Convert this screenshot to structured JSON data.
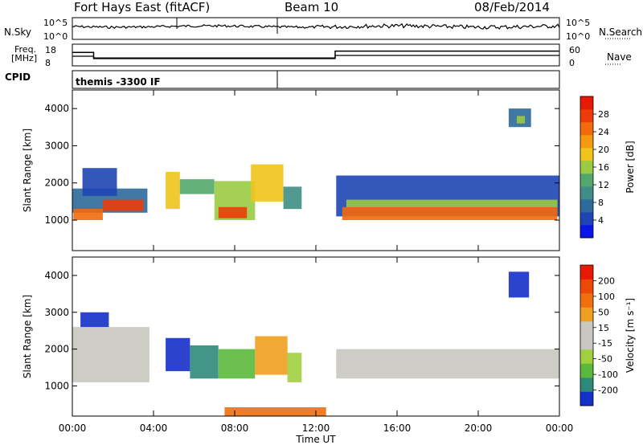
{
  "header": {
    "radar": "Fort Hays East (fitACF)",
    "beam": "Beam 10",
    "date": "08/Feb/2014"
  },
  "strip_nsky": {
    "left_label": "N.Sky",
    "right_label": "N.Search",
    "y_ticks": [
      "10^5",
      "10^0"
    ]
  },
  "strip_freq": {
    "left_label_line1": "Freq.",
    "left_label_line2": "[MHz]",
    "left_ticks": [
      "18",
      "8"
    ],
    "right_label": "Nave",
    "right_ticks": [
      "60",
      "0"
    ],
    "freq_steps": [
      {
        "t0": 0.0,
        "t1": 1.05,
        "freq_mhz": 14.2
      },
      {
        "t0": 1.05,
        "t1": 12.95,
        "freq_mhz": 11.6
      },
      {
        "t0": 12.95,
        "t1": 24.0,
        "freq_mhz": 14.8
      }
    ]
  },
  "cpid": {
    "label": "CPID",
    "program": "themis -3300 IF"
  },
  "chart_data": [
    {
      "type": "heatmap",
      "name": "power",
      "ylabel": "Slant Range [km]",
      "yticks": [
        1000,
        2000,
        3000,
        4000
      ],
      "ylim": [
        180,
        4500
      ],
      "xlim": [
        0,
        24
      ],
      "colorbar": {
        "label": "Power [dB]",
        "ticks": [
          "28",
          "24",
          "20",
          "16",
          "12",
          "8",
          "4"
        ],
        "colors": [
          "#0a15e8",
          "#1e45b4",
          "#2e6a9a",
          "#3f8e86",
          "#52a86a",
          "#9acb42",
          "#f0c41c",
          "#f59a10",
          "#f26a0c",
          "#ee3b08",
          "#e61a04"
        ]
      },
      "patches": [
        {
          "t0": 0.0,
          "t1": 3.7,
          "r0": 1200,
          "r1": 1850,
          "lvl": 2
        },
        {
          "t0": 0.05,
          "t1": 1.5,
          "r0": 1000,
          "r1": 1300,
          "lvl": 8
        },
        {
          "t0": 1.5,
          "t1": 3.5,
          "r0": 1250,
          "r1": 1550,
          "lvl": 9
        },
        {
          "t0": 0.5,
          "t1": 2.2,
          "r0": 1650,
          "r1": 2400,
          "lvl": 1
        },
        {
          "t0": 4.6,
          "t1": 5.3,
          "r0": 1300,
          "r1": 2300,
          "lvl": 6
        },
        {
          "t0": 5.3,
          "t1": 7.0,
          "r0": 1700,
          "r1": 2100,
          "lvl": 4
        },
        {
          "t0": 7.0,
          "t1": 9.0,
          "r0": 1000,
          "r1": 2050,
          "lvl": 5
        },
        {
          "t0": 7.2,
          "t1": 8.6,
          "r0": 1050,
          "r1": 1350,
          "lvl": 9
        },
        {
          "t0": 8.8,
          "t1": 10.4,
          "r0": 1500,
          "r1": 2500,
          "lvl": 6
        },
        {
          "t0": 10.4,
          "t1": 11.3,
          "r0": 1300,
          "r1": 1900,
          "lvl": 3
        },
        {
          "t0": 13.0,
          "t1": 24.0,
          "r0": 1100,
          "r1": 2200,
          "lvl": 1
        },
        {
          "t0": 13.3,
          "t1": 23.9,
          "r0": 1000,
          "r1": 1350,
          "lvl": 8
        },
        {
          "t0": 13.5,
          "t1": 23.9,
          "r0": 1350,
          "r1": 1550,
          "lvl": 5
        },
        {
          "t0": 21.5,
          "t1": 22.6,
          "r0": 3500,
          "r1": 4000,
          "lvl": 2
        },
        {
          "t0": 21.9,
          "t1": 22.3,
          "r0": 3600,
          "r1": 3800,
          "lvl": 5
        }
      ]
    },
    {
      "type": "heatmap",
      "name": "velocity",
      "ylabel": "Slant Range [km]",
      "yticks": [
        1000,
        2000,
        3000,
        4000
      ],
      "ylim": [
        180,
        4500
      ],
      "xlim": [
        0,
        24
      ],
      "xticks": [
        "00:00",
        "04:00",
        "08:00",
        "12:00",
        "16:00",
        "20:00",
        "00:00"
      ],
      "xlabel": "Time UT",
      "colorbar": {
        "label": "Velocity [m s⁻¹]",
        "ticks": [
          "200",
          "100",
          "50",
          "15",
          "-15",
          "-50",
          "-100",
          "-200"
        ],
        "colors": [
          "#1530c8",
          "#2d8a7a",
          "#5ab83c",
          "#a0d040",
          "#c8c8c0",
          "#c8c8c0",
          "#f0a020",
          "#f07010",
          "#ec4808",
          "#e81a04"
        ]
      },
      "patches": [
        {
          "t0": 0.0,
          "t1": 3.8,
          "r0": 1100,
          "r1": 2600,
          "lvl": 4
        },
        {
          "t0": 0.4,
          "t1": 1.8,
          "r0": 2600,
          "r1": 3000,
          "lvl": 0
        },
        {
          "t0": 4.6,
          "t1": 5.8,
          "r0": 1400,
          "r1": 2300,
          "lvl": 0
        },
        {
          "t0": 5.8,
          "t1": 7.2,
          "r0": 1200,
          "r1": 2100,
          "lvl": 1
        },
        {
          "t0": 7.2,
          "t1": 9.0,
          "r0": 1200,
          "r1": 2000,
          "lvl": 2
        },
        {
          "t0": 9.0,
          "t1": 10.6,
          "r0": 1300,
          "r1": 2350,
          "lvl": 6
        },
        {
          "t0": 10.6,
          "t1": 11.3,
          "r0": 1100,
          "r1": 1900,
          "lvl": 3
        },
        {
          "t0": 13.0,
          "t1": 24.0,
          "r0": 1200,
          "r1": 2000,
          "lvl": 4
        },
        {
          "t0": 21.5,
          "t1": 22.5,
          "r0": 3400,
          "r1": 4100,
          "lvl": 0
        },
        {
          "t0": 7.5,
          "t1": 12.5,
          "r0": 180,
          "r1": 420,
          "lvl": 7
        }
      ]
    }
  ]
}
